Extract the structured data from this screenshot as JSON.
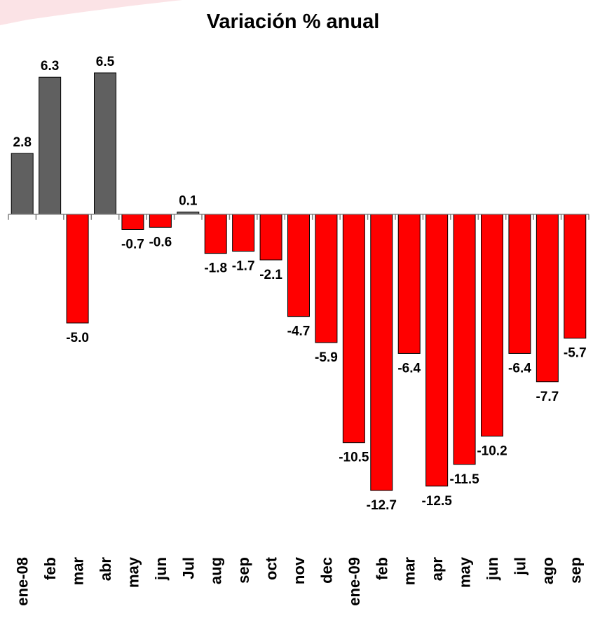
{
  "chart_data": {
    "type": "bar",
    "title": "Variación % anual",
    "categories": [
      "ene-08",
      "feb",
      "mar",
      "abr",
      "may",
      "jun",
      "Jul",
      "aug",
      "sep",
      "oct",
      "nov",
      "dec",
      "ene-09",
      "feb",
      "mar",
      "apr",
      "may",
      "jun",
      "jul",
      "ago",
      "sep"
    ],
    "values": [
      2.8,
      6.3,
      -5.0,
      6.5,
      -0.7,
      -0.6,
      0.1,
      -1.8,
      -1.7,
      -2.1,
      -4.7,
      -5.9,
      -10.5,
      -12.7,
      -6.4,
      -12.5,
      -11.5,
      -10.2,
      -6.4,
      -7.7,
      -5.7
    ],
    "value_labels": [
      "2.8",
      "6.3",
      "-5.0",
      "6.5",
      "-0.7",
      "-0.6",
      "0.1",
      "-1.8",
      "-1.7",
      "-2.1",
      "-4.7",
      "-5.9",
      "-10.5",
      "-12.7",
      "-6.4",
      "-12.5",
      "-11.5",
      "-10.2",
      "-6.4",
      "-7.7",
      "-5.7"
    ],
    "color": "#606060",
    "negative_color": "#ff0000"
  }
}
